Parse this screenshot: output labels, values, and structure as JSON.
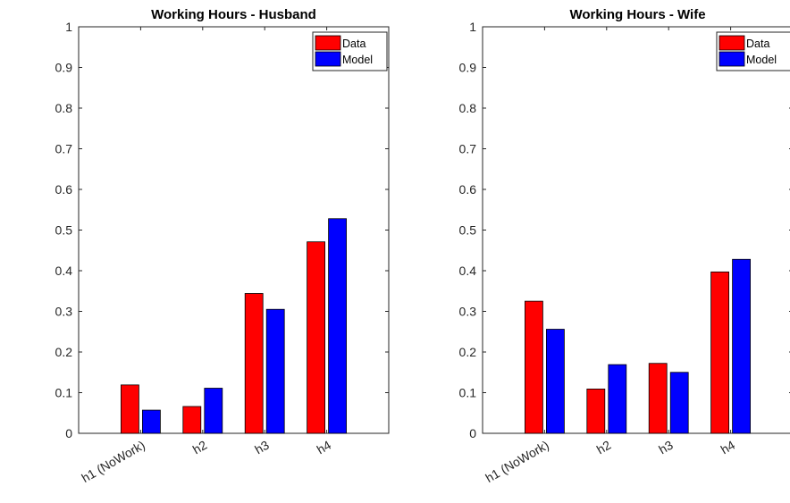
{
  "chart_data": [
    {
      "type": "bar",
      "title": "Working Hours - Husband",
      "xlabel": "",
      "ylabel": "",
      "categories": [
        "h1 (NoWork)",
        "h2",
        "h3",
        "h4"
      ],
      "series": [
        {
          "name": "Data",
          "color": "#ff0000",
          "values": [
            0.119,
            0.066,
            0.344,
            0.471
          ]
        },
        {
          "name": "Model",
          "color": "#0000ff",
          "values": [
            0.057,
            0.111,
            0.305,
            0.528
          ]
        }
      ],
      "ylim": [
        0,
        1
      ],
      "yticks": [
        "0",
        "0.1",
        "0.2",
        "0.3",
        "0.4",
        "0.5",
        "0.6",
        "0.7",
        "0.8",
        "0.9",
        "1"
      ],
      "grid": false,
      "legend_position": "top-right"
    },
    {
      "type": "bar",
      "title": "Working Hours - Wife",
      "xlabel": "",
      "ylabel": "",
      "categories": [
        "h1 (NoWork)",
        "h2",
        "h3",
        "h4"
      ],
      "series": [
        {
          "name": "Data",
          "color": "#ff0000",
          "values": [
            0.325,
            0.109,
            0.172,
            0.397
          ]
        },
        {
          "name": "Model",
          "color": "#0000ff",
          "values": [
            0.256,
            0.169,
            0.15,
            0.428
          ]
        }
      ],
      "ylim": [
        0,
        1
      ],
      "yticks": [
        "0",
        "0.1",
        "0.2",
        "0.3",
        "0.4",
        "0.5",
        "0.6",
        "0.7",
        "0.8",
        "0.9",
        "1"
      ],
      "grid": false,
      "legend_position": "top-right"
    }
  ]
}
